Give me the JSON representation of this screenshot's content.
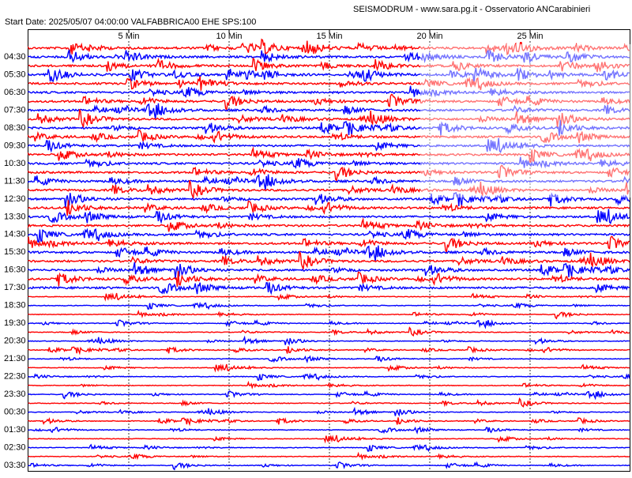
{
  "header": {
    "title": "SEISMODRUM - www.sara.pg.it - Osservatorio ANCarabinieri",
    "start": "Start Date: 2025/05/07 04:00:00 VALFABBRICA00 EHE  SPS:100"
  },
  "minute_labels": [
    "5 Min",
    "10 Min",
    "15 Min",
    "20 Min",
    "25 Min"
  ],
  "hour_labels": [
    "04:30",
    "05:30",
    "06:30",
    "07:30",
    "08:30",
    "09:30",
    "10:30",
    "11:30",
    "12:30",
    "13:30",
    "14:30",
    "15:30",
    "16:30",
    "17:30",
    "18:30",
    "19:30",
    "20:30",
    "21:30",
    "22:30",
    "23:30",
    "00:30",
    "01:30",
    "02:30",
    "03:30"
  ]
}
